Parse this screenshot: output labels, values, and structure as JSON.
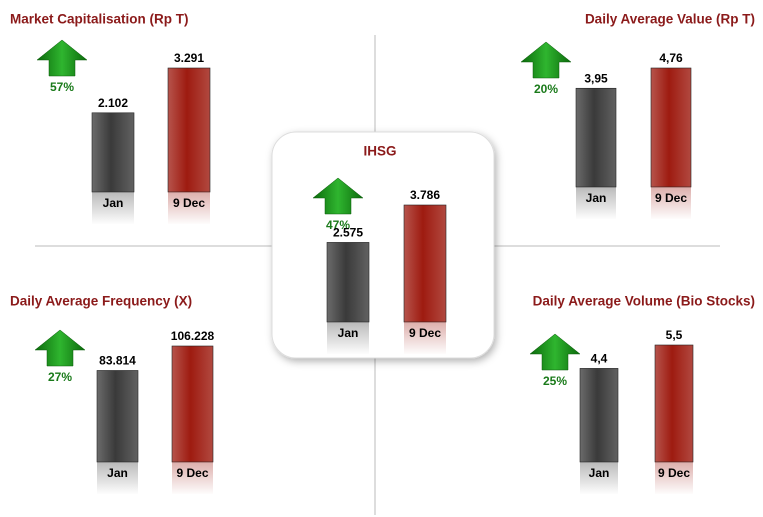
{
  "charts": [
    {
      "type": "bar",
      "title": "Market Capitalisation (Rp T)",
      "categories": [
        "Jan",
        "9 Dec"
      ],
      "values": [
        2102,
        3291
      ],
      "value_labels": [
        "2.102",
        "3.291"
      ],
      "colors": [
        "#3a3a3a",
        "#9e1b10"
      ],
      "change": {
        "value": 57,
        "label": "57%"
      }
    },
    {
      "type": "bar",
      "title": "Daily Average Value (Rp T)",
      "categories": [
        "Jan",
        "9 Dec"
      ],
      "values": [
        3.95,
        4.76
      ],
      "value_labels": [
        "3,95",
        "4,76"
      ],
      "colors": [
        "#3a3a3a",
        "#9e1b10"
      ],
      "change": {
        "value": 20,
        "label": "20%"
      }
    },
    {
      "type": "bar",
      "title": "IHSG",
      "categories": [
        "Jan",
        "9 Dec"
      ],
      "values": [
        2575,
        3786
      ],
      "value_labels": [
        "2.575",
        "3.786"
      ],
      "colors": [
        "#3a3a3a",
        "#9e1b10"
      ],
      "change": {
        "value": 47,
        "label": "47%"
      }
    },
    {
      "type": "bar",
      "title": "Daily Average Frequency (X)",
      "categories": [
        "Jan",
        "9 Dec"
      ],
      "values": [
        83814,
        106228
      ],
      "value_labels": [
        "83.814",
        "106.228"
      ],
      "colors": [
        "#3a3a3a",
        "#9e1b10"
      ],
      "change": {
        "value": 27,
        "label": "27%"
      }
    },
    {
      "type": "bar",
      "title": "Daily Average Volume (Bio Stocks)",
      "categories": [
        "Jan",
        "9 Dec"
      ],
      "values": [
        4.4,
        5.5
      ],
      "value_labels": [
        "4,4",
        "5,5"
      ],
      "colors": [
        "#3a3a3a",
        "#9e1b10"
      ],
      "change": {
        "value": 25,
        "label": "25%"
      }
    }
  ]
}
